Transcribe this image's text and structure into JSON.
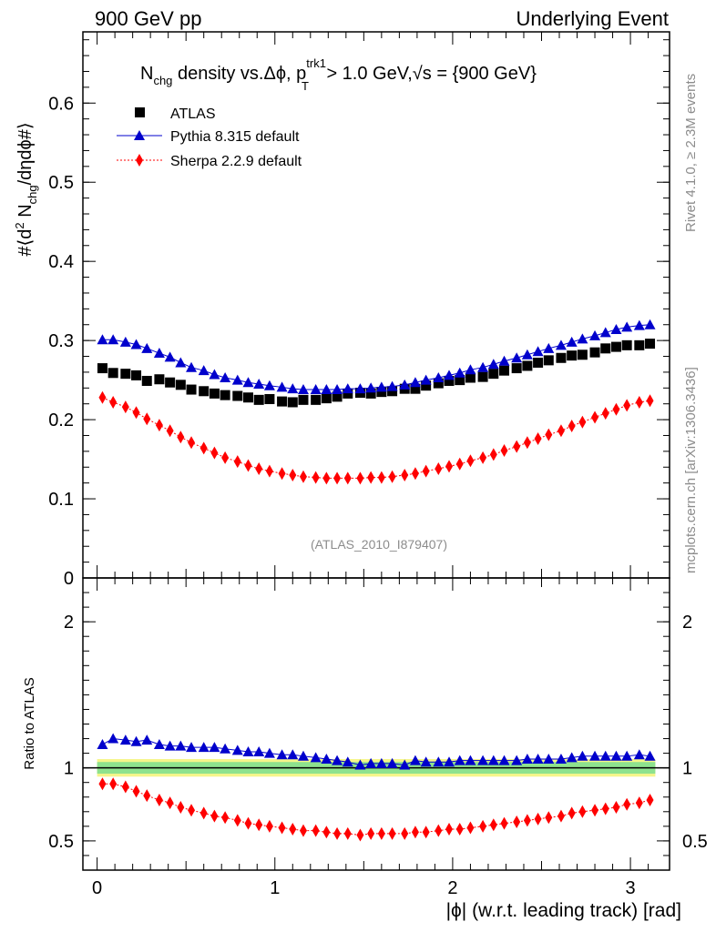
{
  "header": {
    "left": "900 GeV pp",
    "right": "Underlying Event"
  },
  "title": {
    "prefix": "N",
    "prefix_sub": "chg",
    "mid": " density vs.Δϕ, p",
    "pt_sup": "trk1",
    "pt_sub": "T",
    "suffix": " > 1.0 GeV,",
    "sqrt": "√s",
    "energy": " = {900 GeV}"
  },
  "ylabel": {
    "a": "#⟨d",
    "a_sup": "2",
    "b": " N",
    "b_sub": "chg",
    "c": "/dηdϕ#⟩"
  },
  "ratio_ylabel": "Ratio to ATLAS",
  "xlabel": "|ϕ| (w.r.t. leading track) [rad]",
  "watermark": "(ATLAS_2010_I879407)",
  "side_text": {
    "rivet": "Rivet 4.1.0, ≥ 2.3M events",
    "mcplots": "mcplots.cern.ch [arXiv:1306.3436]"
  },
  "legend": [
    {
      "label": "ATLAS",
      "color": "#000000",
      "marker": "square"
    },
    {
      "label": "Pythia 8.315 default",
      "color": "#0000cc",
      "marker": "triangle"
    },
    {
      "label": "Sherpa 2.2.9 default",
      "color": "#ff0000",
      "marker": "diamond"
    }
  ],
  "chart_data": [
    {
      "type": "scatter",
      "panel": "main",
      "xlim": [
        -0.08,
        3.22
      ],
      "ylim": [
        0,
        0.69
      ],
      "yticks": [
        0,
        0.1,
        0.2,
        0.3,
        0.4,
        0.5,
        0.6
      ],
      "ytick_labels": [
        "0",
        "0.1",
        "0.2",
        "0.3",
        "0.4",
        "0.5",
        "0.6"
      ],
      "x": [
        0.03,
        0.09,
        0.16,
        0.22,
        0.28,
        0.35,
        0.41,
        0.47,
        0.53,
        0.6,
        0.66,
        0.72,
        0.79,
        0.85,
        0.91,
        0.97,
        1.04,
        1.1,
        1.16,
        1.23,
        1.29,
        1.35,
        1.41,
        1.48,
        1.54,
        1.6,
        1.66,
        1.73,
        1.79,
        1.85,
        1.92,
        1.98,
        2.04,
        2.1,
        2.17,
        2.23,
        2.29,
        2.36,
        2.42,
        2.48,
        2.54,
        2.61,
        2.67,
        2.73,
        2.8,
        2.86,
        2.92,
        2.98,
        3.05,
        3.11
      ],
      "series": [
        {
          "name": "ATLAS",
          "values": [
            0.265,
            0.259,
            0.258,
            0.256,
            0.249,
            0.251,
            0.247,
            0.244,
            0.238,
            0.236,
            0.233,
            0.231,
            0.23,
            0.228,
            0.225,
            0.226,
            0.223,
            0.222,
            0.225,
            0.225,
            0.227,
            0.229,
            0.233,
            0.234,
            0.233,
            0.235,
            0.236,
            0.239,
            0.239,
            0.243,
            0.246,
            0.249,
            0.25,
            0.253,
            0.254,
            0.258,
            0.262,
            0.265,
            0.268,
            0.272,
            0.275,
            0.278,
            0.281,
            0.282,
            0.285,
            0.29,
            0.292,
            0.294,
            0.294,
            0.296
          ]
        },
        {
          "name": "Pythia 8.315 default",
          "values": [
            0.301,
            0.301,
            0.298,
            0.295,
            0.29,
            0.284,
            0.279,
            0.272,
            0.266,
            0.262,
            0.257,
            0.253,
            0.25,
            0.247,
            0.245,
            0.243,
            0.241,
            0.239,
            0.238,
            0.238,
            0.238,
            0.238,
            0.239,
            0.239,
            0.24,
            0.241,
            0.242,
            0.244,
            0.247,
            0.25,
            0.253,
            0.256,
            0.259,
            0.263,
            0.266,
            0.27,
            0.274,
            0.278,
            0.282,
            0.286,
            0.29,
            0.294,
            0.298,
            0.302,
            0.306,
            0.31,
            0.314,
            0.317,
            0.319,
            0.32
          ]
        },
        {
          "name": "Sherpa 2.2.9 default",
          "values": [
            0.228,
            0.222,
            0.216,
            0.209,
            0.201,
            0.193,
            0.186,
            0.178,
            0.171,
            0.164,
            0.158,
            0.152,
            0.147,
            0.142,
            0.138,
            0.135,
            0.132,
            0.13,
            0.128,
            0.127,
            0.126,
            0.126,
            0.126,
            0.126,
            0.127,
            0.127,
            0.128,
            0.13,
            0.132,
            0.135,
            0.138,
            0.141,
            0.144,
            0.148,
            0.152,
            0.156,
            0.161,
            0.166,
            0.171,
            0.176,
            0.181,
            0.186,
            0.192,
            0.197,
            0.203,
            0.208,
            0.213,
            0.218,
            0.222,
            0.224
          ]
        }
      ]
    },
    {
      "type": "scatter",
      "panel": "ratio",
      "xlabel": "|ϕ| (w.r.t. leading track) [rad]",
      "ylabel": "Ratio to ATLAS",
      "xlim": [
        -0.08,
        3.22
      ],
      "ylim": [
        0.3,
        2.3
      ],
      "yticks": [
        0.5,
        1,
        2
      ],
      "ytick_labels": [
        "0.5",
        "1",
        "2"
      ],
      "xticks": [
        0,
        1,
        2,
        3
      ],
      "xtick_labels": [
        "0",
        "1",
        "2",
        "3"
      ],
      "reference_line": 1.0,
      "band_inner": [
        0.96,
        1.04
      ],
      "band_outer": [
        0.94,
        1.06
      ],
      "x": [
        0.03,
        0.09,
        0.16,
        0.22,
        0.28,
        0.35,
        0.41,
        0.47,
        0.53,
        0.6,
        0.66,
        0.72,
        0.79,
        0.85,
        0.91,
        0.97,
        1.04,
        1.1,
        1.16,
        1.23,
        1.29,
        1.35,
        1.41,
        1.48,
        1.54,
        1.6,
        1.66,
        1.73,
        1.79,
        1.85,
        1.92,
        1.98,
        2.04,
        2.1,
        2.17,
        2.23,
        2.29,
        2.36,
        2.42,
        2.48,
        2.54,
        2.61,
        2.67,
        2.73,
        2.8,
        2.86,
        2.92,
        2.98,
        3.05,
        3.11
      ],
      "series": [
        {
          "name": "Pythia 8.315 default",
          "values": [
            1.16,
            1.2,
            1.19,
            1.18,
            1.19,
            1.16,
            1.15,
            1.15,
            1.14,
            1.14,
            1.14,
            1.13,
            1.12,
            1.11,
            1.11,
            1.1,
            1.09,
            1.09,
            1.08,
            1.07,
            1.06,
            1.05,
            1.04,
            1.02,
            1.03,
            1.03,
            1.03,
            1.02,
            1.05,
            1.04,
            1.04,
            1.04,
            1.05,
            1.05,
            1.05,
            1.05,
            1.05,
            1.05,
            1.06,
            1.06,
            1.06,
            1.06,
            1.07,
            1.08,
            1.08,
            1.08,
            1.08,
            1.08,
            1.09,
            1.08
          ]
        },
        {
          "name": "Sherpa 2.2.9 default",
          "values": [
            0.89,
            0.89,
            0.87,
            0.84,
            0.81,
            0.78,
            0.76,
            0.73,
            0.71,
            0.69,
            0.67,
            0.66,
            0.64,
            0.62,
            0.61,
            0.6,
            0.59,
            0.58,
            0.57,
            0.57,
            0.56,
            0.55,
            0.55,
            0.54,
            0.55,
            0.55,
            0.55,
            0.55,
            0.56,
            0.56,
            0.57,
            0.58,
            0.58,
            0.59,
            0.6,
            0.61,
            0.62,
            0.63,
            0.64,
            0.65,
            0.66,
            0.67,
            0.69,
            0.7,
            0.71,
            0.72,
            0.73,
            0.75,
            0.76,
            0.78
          ]
        }
      ]
    }
  ]
}
